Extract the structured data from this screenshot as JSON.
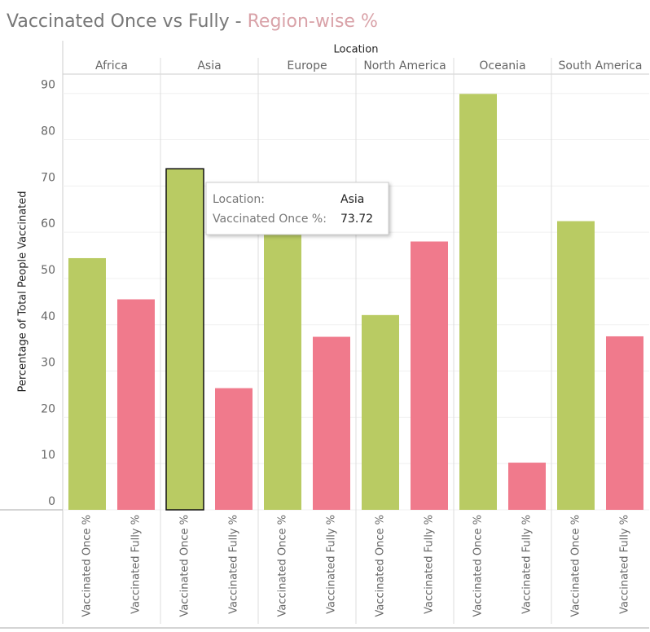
{
  "chart_data": {
    "type": "bar",
    "title": "Vaccinated Once vs Fully -",
    "title_highlight": "Region-wise %",
    "column_header": "Location",
    "y_label": "Percentage of Total People Vaccinated",
    "categories": [
      "Africa",
      "Asia",
      "Europe",
      "North America",
      "Oceania",
      "South America"
    ],
    "series": [
      {
        "name": "Vaccinated Once %",
        "color": "#b9cb63",
        "values": [
          54.4,
          73.72,
          59.6,
          42.1,
          89.9,
          62.4
        ]
      },
      {
        "name": "Vaccinated Fully %",
        "color": "#f07a8c",
        "values": [
          45.5,
          26.3,
          37.4,
          58.0,
          10.2,
          37.5
        ]
      }
    ],
    "ylim": [
      0,
      94
    ],
    "yticks": [
      0,
      10,
      20,
      30,
      40,
      50,
      60,
      70,
      80,
      90
    ],
    "grid": true,
    "tooltip": {
      "location_label": "Location:",
      "measure_label": "Vaccinated Once %:"
    }
  }
}
